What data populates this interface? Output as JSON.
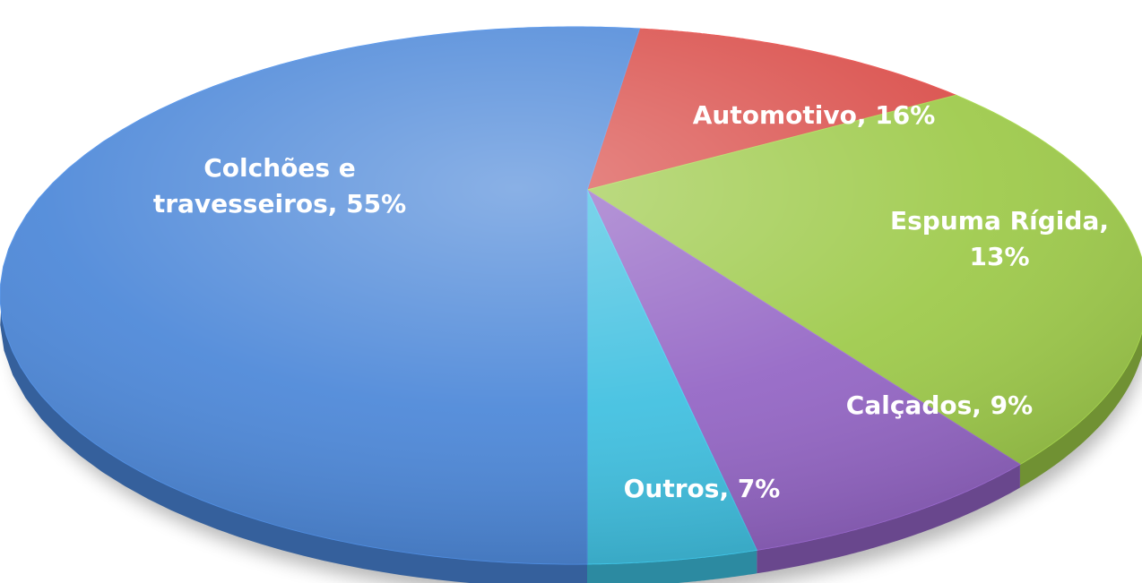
{
  "chart_data": {
    "type": "pie",
    "title": "",
    "slices": [
      {
        "label": "Automotivo",
        "value": 16,
        "label_lines": [
          "Automotivo, 16%"
        ],
        "color": "#d94b47"
      },
      {
        "label": "Espuma Rígida",
        "value": 13,
        "label_lines": [
          "Espuma Rígida,",
          "13%"
        ],
        "color": "#9cc947"
      },
      {
        "label": "Calçados",
        "value": 9,
        "label_lines": [
          "Calçados, 9%"
        ],
        "color": "#9263c4"
      },
      {
        "label": "Outros",
        "value": 7,
        "label_lines": [
          "Outros, 7%"
        ],
        "color": "#3dbfe0"
      },
      {
        "label": "Colchões e travesseiros",
        "value": 55,
        "label_lines": [
          "Colchões e",
          "travesseiros, 55%"
        ],
        "color": "#4a86d8"
      }
    ],
    "legend": "none",
    "data_labels": "inside, category and percent"
  }
}
